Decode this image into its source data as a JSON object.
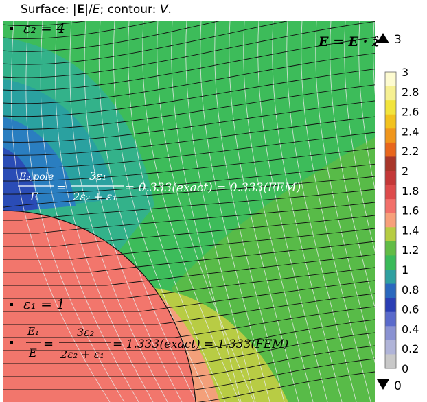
{
  "title": {
    "surface": "Surface:",
    "abs_open": "|",
    "e_bold": "E",
    "abs_close": "|",
    "slash": "/",
    "e_italic": "E",
    "semicolon": ";",
    "contour": "contour:",
    "v_italic": "V",
    "period": "."
  },
  "annotations": {
    "eps2": "ε₂ = 4",
    "eps1": "ε₁ = 1",
    "field": "E = E · ẑ",
    "pole_lhs_num": "E₂,pole",
    "pole_lhs_den": "E",
    "pole_rhs_num": "3ε₁",
    "pole_rhs_den": "2ε₂ + ε₁",
    "pole_result": "= 0.333(exact) = 0.333(FEM)",
    "in_lhs_num": "E₁",
    "in_lhs_den": "E",
    "in_rhs_num": "3ε₂",
    "in_rhs_den": "2ε₂ + ε₁",
    "in_result": "= 1.333(exact) = 1.333(FEM)"
  },
  "colorbar": {
    "max_marker": "3",
    "min_marker": "0",
    "ticks": [
      "3",
      "2.8",
      "2.6",
      "2.4",
      "2.2",
      "2",
      "1.8",
      "1.6",
      "1.4",
      "1.2",
      "1",
      "0.8",
      "0.6",
      "0.4",
      "0.2",
      "0"
    ],
    "colors": [
      "#fdfbd0",
      "#f6f092",
      "#f2e43c",
      "#f2c21e",
      "#f0961c",
      "#e8661c",
      "#a8362a",
      "#c43838",
      "#dd4b4b",
      "#f2706a",
      "#f7a07a",
      "#b6cc42",
      "#62bc46",
      "#3aba5a",
      "#2fa0a0",
      "#2a68be",
      "#2a3eb4",
      "#5a6acb",
      "#8a92d2",
      "#b0b4d8",
      "#c8c8c8"
    ]
  },
  "regions": {
    "inner_color": "#f2766c",
    "outer_bg_color": "#3fbf58"
  }
}
